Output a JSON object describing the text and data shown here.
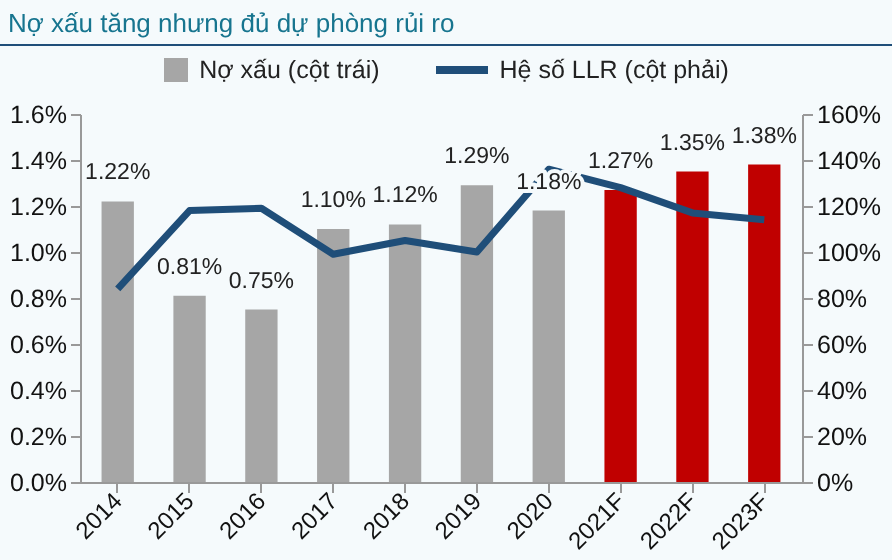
{
  "chart_data": {
    "type": "bar",
    "title": "Nợ xấu tăng nhưng đủ dự phòng rủi ro",
    "categories": [
      "2014",
      "2015",
      "2016",
      "2017",
      "2018",
      "2019",
      "2020",
      "2021F",
      "2022F",
      "2023F"
    ],
    "series": [
      {
        "name": "Nợ xấu (cột trái)",
        "color": "#a6a6a6",
        "colors": [
          "#a6a6a6",
          "#a6a6a6",
          "#a6a6a6",
          "#a6a6a6",
          "#a6a6a6",
          "#a6a6a6",
          "#a6a6a6",
          "#c00000",
          "#c00000",
          "#c00000"
        ],
        "values": [
          1.22,
          0.81,
          0.75,
          1.1,
          1.12,
          1.29,
          1.18,
          1.27,
          1.35,
          1.38
        ],
        "value_labels": [
          "1.22%",
          "0.81%",
          "0.75%",
          "1.10%",
          "1.12%",
          "1.29%",
          "1.18%",
          "1.27%",
          "1.35%",
          "1.38%"
        ]
      },
      {
        "name": "Hệ số LLR (cột phải)",
        "type": "line",
        "axis": "y2",
        "color": "#1f4e79",
        "values": [
          84,
          118,
          119,
          99,
          105,
          100,
          136,
          128,
          117,
          114
        ]
      }
    ],
    "ylim": [
      0,
      1.6
    ],
    "yticks": [
      {
        "value": 0,
        "label": "0.0%"
      },
      {
        "value": 0.2,
        "label": "0.2%"
      },
      {
        "value": 0.4,
        "label": "0.4%"
      },
      {
        "value": 0.6,
        "label": "0.6%"
      },
      {
        "value": 0.8,
        "label": "0.8%"
      },
      {
        "value": 1.0,
        "label": "1.0%"
      },
      {
        "value": 1.2,
        "label": "1.2%"
      },
      {
        "value": 1.4,
        "label": "1.4%"
      },
      {
        "value": 1.6,
        "label": "1.6%"
      }
    ],
    "y2lim": [
      0,
      160
    ],
    "y2ticks": [
      {
        "value": 0,
        "label": "0%"
      },
      {
        "value": 20,
        "label": "20%"
      },
      {
        "value": 40,
        "label": "40%"
      },
      {
        "value": 60,
        "label": "60%"
      },
      {
        "value": 80,
        "label": "80%"
      },
      {
        "value": 100,
        "label": "100%"
      },
      {
        "value": 120,
        "label": "120%"
      },
      {
        "value": 140,
        "label": "140%"
      },
      {
        "value": 160,
        "label": "160%"
      }
    ],
    "legend": "top",
    "grid": false
  }
}
